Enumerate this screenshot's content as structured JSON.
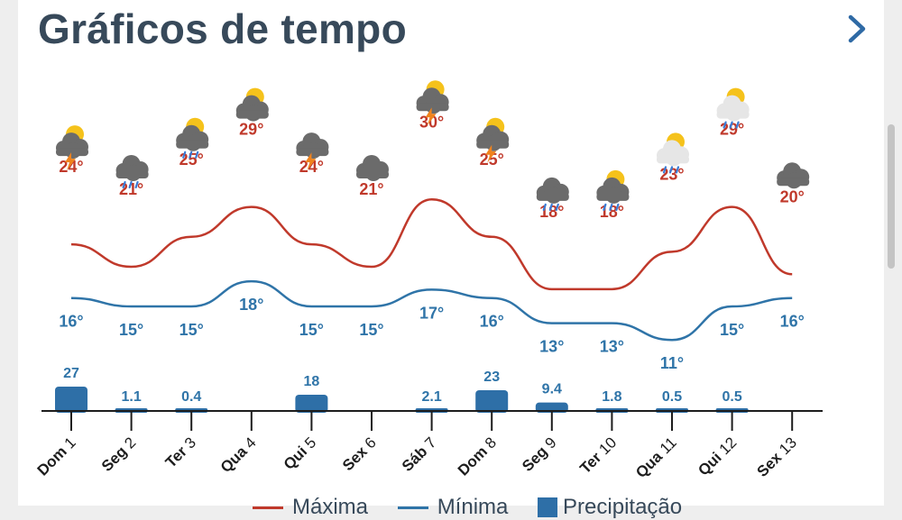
{
  "header": {
    "title": "Gráficos de tempo"
  },
  "legend": {
    "max": "Máxima",
    "min": "Mínima",
    "precip": "Precipitação"
  },
  "colors": {
    "max_line": "#c0392b",
    "min_line": "#2f74a8",
    "bar": "#2e6fa7",
    "text_dark": "#37495a"
  },
  "chart_data": {
    "type": "line",
    "categories": [
      "Dom 1",
      "Seg 2",
      "Ter 3",
      "Qua 4",
      "Qui 5",
      "Sex 6",
      "Sáb 7",
      "Dom 8",
      "Seg 9",
      "Ter 10",
      "Qua 11",
      "Qui 12",
      "Sex 13"
    ],
    "series": [
      {
        "name": "Máxima",
        "values": [
          24,
          21,
          25,
          29,
          24,
          21,
          30,
          25,
          18,
          18,
          23,
          29,
          20
        ],
        "labels": [
          "24°",
          "21°",
          "25°",
          "29°",
          "24°",
          "21°",
          "30°",
          "25°",
          "18°",
          "18°",
          "23°",
          "29°",
          "20°"
        ]
      },
      {
        "name": "Mínima",
        "values": [
          16,
          15,
          15,
          18,
          15,
          15,
          17,
          16,
          13,
          13,
          11,
          15,
          16
        ],
        "labels": [
          "16°",
          "15°",
          "15°",
          "18°",
          "15°",
          "15°",
          "17°",
          "16°",
          "13°",
          "13°",
          "11°",
          "15°",
          "16°"
        ]
      },
      {
        "name": "Precipitação",
        "values": [
          27,
          1.1,
          0.4,
          0,
          18,
          0,
          2.1,
          23,
          9.4,
          1.8,
          0.5,
          0.5,
          0
        ],
        "labels": [
          "27",
          "1.1",
          "0.4",
          "",
          "18",
          "",
          "2.1",
          "23",
          "9.4",
          "1.8",
          "0.5",
          "0.5",
          ""
        ]
      }
    ],
    "icons": [
      "sun-cloud-thunder",
      "cloud-rain",
      "sun-cloud-rain",
      "sun-cloud",
      "cloud-thunder",
      "cloud",
      "sun-cloud-thunder",
      "sun-cloud-thunder",
      "cloud-rain",
      "sun-cloud-rain",
      "sun-cloud-rain-light",
      "sun-cloud-rain-light",
      "cloud"
    ]
  }
}
